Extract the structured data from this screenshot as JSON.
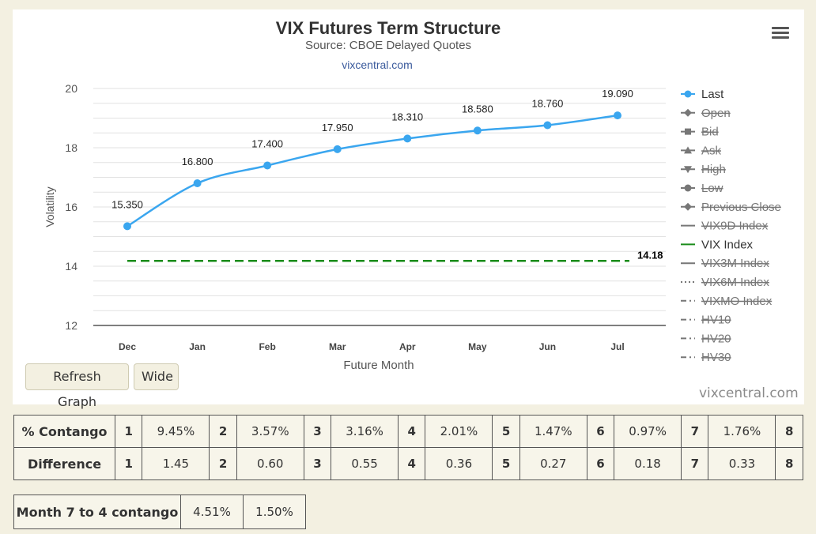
{
  "chart_data": {
    "type": "line",
    "title": "VIX Futures Term Structure",
    "subtitle": "Source: CBOE Delayed Quotes",
    "source_link": "vixcentral.com",
    "credit": "vixcentral.com",
    "xlabel": "Future Month",
    "ylabel": "Volatility",
    "categories": [
      "Dec",
      "Jan",
      "Feb",
      "Mar",
      "Apr",
      "May",
      "Jun",
      "Jul"
    ],
    "ylim": [
      12,
      20
    ],
    "yticks": [
      "12",
      "14",
      "16",
      "18",
      "20"
    ],
    "grid": true,
    "legend_placement": "right",
    "series": [
      {
        "name": "Last",
        "values": [
          15.35,
          16.8,
          17.4,
          17.95,
          18.31,
          18.58,
          18.76,
          19.09
        ],
        "labels": [
          "15.350",
          "16.800",
          "17.400",
          "17.950",
          "18.310",
          "18.580",
          "18.760",
          "19.090"
        ],
        "color": "#3aa6ef"
      },
      {
        "name": "VIX Index",
        "values": [
          14.18,
          14.18,
          14.18,
          14.18,
          14.18,
          14.18,
          14.18,
          14.18
        ],
        "end_label": "14.18",
        "color": "#1a8c1a",
        "dashed": true
      }
    ],
    "legend": [
      {
        "name": "Last",
        "symbol": "circle",
        "active": true
      },
      {
        "name": "Open",
        "symbol": "diamond",
        "active": false
      },
      {
        "name": "Bid",
        "symbol": "square",
        "active": false
      },
      {
        "name": "Ask",
        "symbol": "triangle",
        "active": false
      },
      {
        "name": "High",
        "symbol": "triangle-down",
        "active": false
      },
      {
        "name": "Low",
        "symbol": "circle",
        "active": false
      },
      {
        "name": "Previous Close",
        "symbol": "diamond",
        "active": false
      },
      {
        "name": "VIX9D Index",
        "symbol": "line",
        "active": false
      },
      {
        "name": "VIX Index",
        "symbol": "line",
        "active": true,
        "color": "#1a8c1a"
      },
      {
        "name": "VIX3M Index",
        "symbol": "line",
        "active": false
      },
      {
        "name": "VIX6M Index",
        "symbol": "dotted",
        "active": false
      },
      {
        "name": "VIXMO Index",
        "symbol": "dashdot",
        "active": false
      },
      {
        "name": "HV10",
        "symbol": "dashdot",
        "active": false
      },
      {
        "name": "HV20",
        "symbol": "dashdot",
        "active": false
      },
      {
        "name": "HV30",
        "symbol": "dashdot",
        "active": false
      }
    ]
  },
  "buttons": {
    "refresh": "Refresh Graph",
    "wide": "Wide"
  },
  "contango_table": {
    "rows": [
      {
        "label": "% Contango",
        "cells": [
          {
            "index": "1",
            "value": "9.45%"
          },
          {
            "index": "2",
            "value": "3.57%"
          },
          {
            "index": "3",
            "value": "3.16%"
          },
          {
            "index": "4",
            "value": "2.01%"
          },
          {
            "index": "5",
            "value": "1.47%"
          },
          {
            "index": "6",
            "value": "0.97%"
          },
          {
            "index": "7",
            "value": "1.76%"
          },
          {
            "index": "8",
            "value": ""
          }
        ]
      },
      {
        "label": "Difference",
        "cells": [
          {
            "index": "1",
            "value": "1.45"
          },
          {
            "index": "2",
            "value": "0.60"
          },
          {
            "index": "3",
            "value": "0.55"
          },
          {
            "index": "4",
            "value": "0.36"
          },
          {
            "index": "5",
            "value": "0.27"
          },
          {
            "index": "6",
            "value": "0.18"
          },
          {
            "index": "7",
            "value": "0.33"
          },
          {
            "index": "8",
            "value": ""
          }
        ]
      }
    ]
  },
  "month74": {
    "label": "Month 7 to 4 contango",
    "values": [
      "4.51%",
      "1.50%"
    ]
  }
}
